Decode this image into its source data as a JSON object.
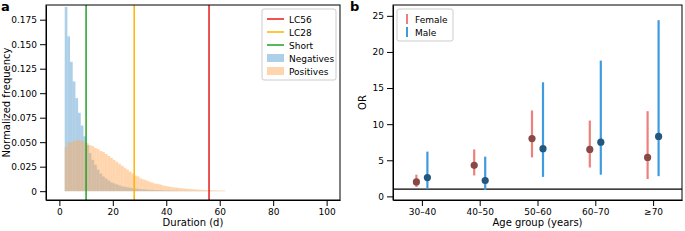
{
  "chart_data": [
    {
      "type": "histogram",
      "panel": "a",
      "xlabel": "Duration (d)",
      "ylabel": "Normalized frequency",
      "xlim": [
        -5,
        105
      ],
      "xticks": [
        0,
        20,
        40,
        60,
        80,
        100
      ],
      "ylim": [
        -0.009,
        0.19
      ],
      "yticks": [
        0,
        0.025,
        {
          "value": 0.05,
          "label": "0.050"
        },
        0.075,
        {
          "value": 0.1,
          "label": "0.100"
        },
        0.125,
        {
          "value": 0.15,
          "label": "0.150"
        },
        0.175
      ],
      "legend": "upper right",
      "bins": [
        2,
        3,
        4,
        5,
        6,
        7,
        8,
        9,
        10,
        11,
        12,
        13,
        14,
        15,
        16,
        17,
        18,
        19,
        20,
        21,
        22,
        23,
        24,
        25,
        26,
        27,
        28,
        29,
        30,
        31,
        32,
        33,
        34,
        35,
        36,
        37,
        38,
        39,
        40,
        41,
        42,
        43,
        44,
        45,
        46,
        47,
        48,
        49,
        50,
        51,
        52,
        53,
        54,
        55,
        56,
        57,
        58,
        59,
        60,
        61,
        62
      ],
      "vlines": [
        {
          "name": "LC56",
          "x": 56,
          "color": "#e8191b"
        },
        {
          "name": "LC28",
          "x": 28,
          "color": "#ffb300"
        },
        {
          "name": "Short",
          "x": 10,
          "color": "#22a02a"
        }
      ],
      "series": [
        {
          "name": "Negatives",
          "color": "#5b9fd1",
          "values": [
            0.188,
            0.158,
            0.132,
            0.112,
            0.095,
            0.08,
            0.067,
            0.056,
            0.047,
            0.039,
            0.032,
            0.027,
            0.022,
            0.018,
            0.015,
            0.013,
            0.011,
            0.009,
            0.008,
            0.007,
            0.006,
            0.005,
            0.0045,
            0.004,
            0.0035,
            0.003,
            0.0027,
            0.0024,
            0.0021,
            0.0019,
            0.0017,
            0.0015,
            0.0013,
            0.0012,
            0.0011,
            0.001,
            0.0009,
            0.0008,
            0.0007,
            0.0006,
            0.0006,
            0.0005,
            0.0005,
            0.0004,
            0.0004,
            0.0004,
            0.0003,
            0.0003,
            0.0003,
            0.0003,
            0.0002,
            0.0002,
            0.0002,
            0.0002,
            0.0002,
            0.0001,
            0.0001,
            0.0001,
            0.0001,
            0.0001
          ]
        },
        {
          "name": "Positives",
          "color": "#ffab5c",
          "values": [
            0.045,
            0.05,
            0.05,
            0.051,
            0.052,
            0.052,
            0.051,
            0.05,
            0.049,
            0.047,
            0.046,
            0.044,
            0.043,
            0.041,
            0.04,
            0.038,
            0.036,
            0.034,
            0.032,
            0.03,
            0.028,
            0.026,
            0.024,
            0.022,
            0.02,
            0.018,
            0.016,
            0.015,
            0.013,
            0.012,
            0.011,
            0.01,
            0.009,
            0.008,
            0.0075,
            0.007,
            0.0062,
            0.0055,
            0.005,
            0.0045,
            0.004,
            0.0037,
            0.0034,
            0.0031,
            0.0028,
            0.0025,
            0.0023,
            0.0021,
            0.0019,
            0.0017,
            0.0015,
            0.0014,
            0.0013,
            0.0012,
            0.0011,
            0.001,
            0.0009,
            0.0008,
            0.0007,
            0.0006
          ]
        }
      ]
    },
    {
      "type": "scatter",
      "panel": "b",
      "xlabel": "Age group (years)",
      "ylabel": "OR",
      "categories": [
        "30–40",
        "40–50",
        "50–60",
        "60–70",
        "≥70"
      ],
      "ylim": [
        -0.5,
        26.5
      ],
      "yticks": [
        0,
        5,
        10,
        15,
        20,
        25
      ],
      "reference_line": 1,
      "legend": "upper left",
      "series": [
        {
          "name": "Female",
          "color": "#ee7f7b",
          "marker": "circle",
          "values": [
            2.0,
            4.3,
            8.0,
            6.5,
            5.4
          ],
          "lower": [
            1.3,
            2.9,
            5.4,
            4.0,
            2.4
          ],
          "upper": [
            3.0,
            6.5,
            11.9,
            10.5,
            11.8
          ]
        },
        {
          "name": "Male",
          "color": "#3f9ae0",
          "marker": "circle",
          "values": [
            2.6,
            2.2,
            6.6,
            7.5,
            8.3
          ],
          "lower": [
            1.0,
            0.9,
            2.7,
            3.0,
            2.8
          ],
          "upper": [
            6.2,
            5.5,
            15.8,
            18.8,
            24.4
          ]
        }
      ]
    }
  ]
}
